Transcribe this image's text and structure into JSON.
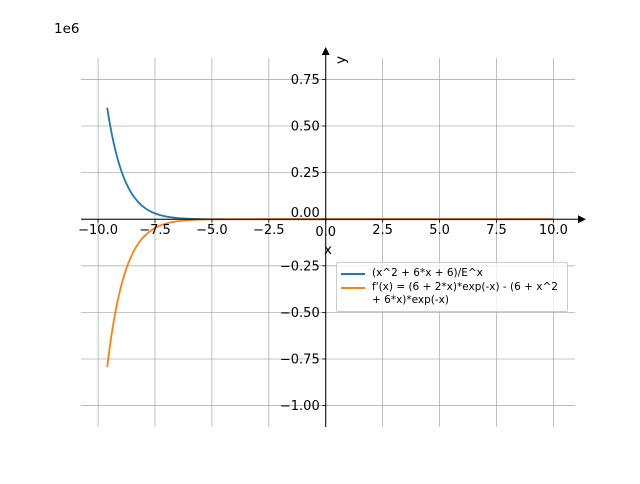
{
  "chart_data": {
    "type": "line",
    "title": "",
    "xlabel": "x",
    "ylabel": "y",
    "y_scale_label": "1e6",
    "xlim": [
      -10.75,
      10.95
    ],
    "ylim": [
      -1.115,
      0.865
    ],
    "y_multiplier": 1000000,
    "grid": true,
    "legend_position": "top-right",
    "x_ticks": [
      -10,
      -7.5,
      -5,
      -2.5,
      0,
      2.5,
      5,
      7.5,
      10
    ],
    "x_tick_labels": [
      "−10.0",
      "−7.5",
      "−5.0",
      "−2.5",
      "0.0",
      "2.5",
      "5.0",
      "7.5",
      "10.0"
    ],
    "y_ticks": [
      -1.0,
      -0.75,
      -0.5,
      -0.25,
      0,
      0.25,
      0.5,
      0.75
    ],
    "y_tick_labels": [
      "−1.00",
      "−0.75",
      "−0.50",
      "−0.25",
      "0.00",
      "0.25",
      "0.50",
      "0.75"
    ],
    "series": [
      {
        "name": "(x^2 + 6*x + 6)/E^x",
        "color": "#1f77b4",
        "x": [
          -9.6,
          -9,
          -8.5,
          -8,
          -7.5,
          -7,
          -6.5,
          -6,
          -5,
          -4,
          -2,
          0,
          2,
          5,
          10
        ],
        "y": [
          0.5988,
          0.2674,
          0.1339,
          0.0656,
          0.0312,
          0.0143,
          0.0062,
          0.0024,
          0.00015,
          0.00011,
          0.0,
          0.0,
          0.0,
          0.0,
          0.0
        ]
      },
      {
        "name": "f'(x) = (6 + 2*x)*exp(-x) - (6 + x^2 + 6*x)*exp(-x)",
        "color": "#ff7f0e",
        "x": [
          -9.6,
          -9,
          -8.5,
          -8,
          -7.5,
          -7,
          -6.5,
          -6,
          -5,
          -4,
          -2,
          0,
          2,
          5,
          10
        ],
        "y": [
          -0.7937,
          -0.3646,
          -0.188,
          -0.0954,
          -0.0475,
          -0.023,
          -0.0108,
          -0.0048,
          -0.0007,
          0.0,
          0.0,
          0.0,
          0.0,
          0.0,
          0.0
        ]
      }
    ]
  }
}
